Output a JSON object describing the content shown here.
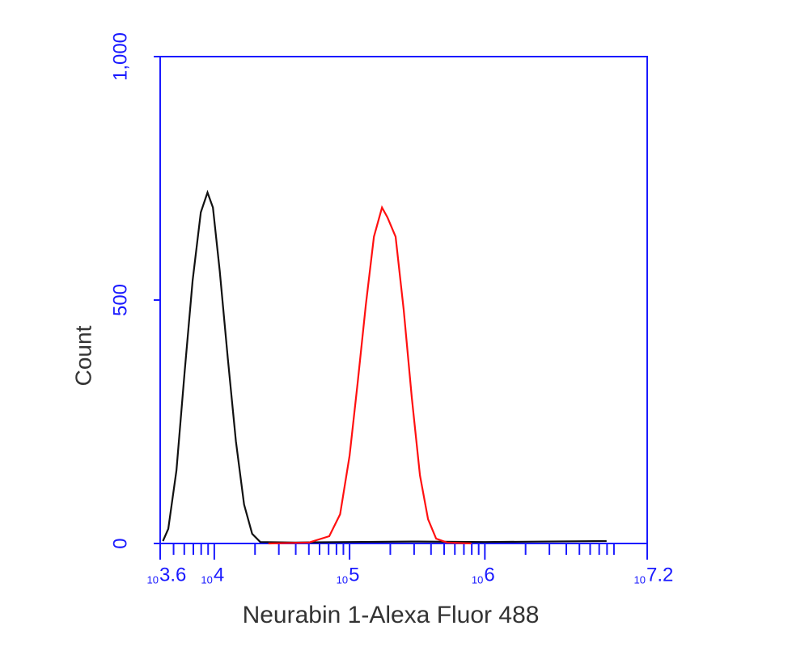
{
  "chart_data": {
    "type": "line",
    "x_label": "Neurabin 1-Alexa Fluor 488",
    "y_label": "Count",
    "x_log_scale": true,
    "log_base_label": "10",
    "xlim": [
      3981,
      15848932
    ],
    "xticks": [
      {
        "value": 3981,
        "label": "3.6"
      },
      {
        "value": 10000,
        "label": "4"
      },
      {
        "value": 100000,
        "label": "5"
      },
      {
        "value": 1000000,
        "label": "6"
      },
      {
        "value": 15848932,
        "label": "7.2"
      }
    ],
    "xticks_minor": [
      5000,
      6000,
      7000,
      8000,
      9000,
      20000,
      30000,
      40000,
      50000,
      60000,
      70000,
      80000,
      90000,
      200000,
      300000,
      400000,
      500000,
      600000,
      700000,
      800000,
      900000,
      2000000,
      3000000,
      4000000,
      5000000,
      6000000,
      7000000,
      8000000,
      9000000
    ],
    "ylim": [
      0,
      1000
    ],
    "yticks": [
      0,
      500,
      {
        "value": 1000,
        "label": "1,000"
      }
    ],
    "axis_color": "#1a1aff",
    "series": [
      {
        "color": "#111111",
        "x": [
          4169,
          4571,
          5248,
          6026,
          6918,
          7943,
          8913,
          9772,
          10965,
          12589,
          14454,
          16596,
          19055,
          21878,
          39811,
          100000,
          316228,
          1000000,
          7943282
        ],
        "values": [
          5,
          30,
          150,
          350,
          540,
          680,
          721,
          690,
          560,
          380,
          210,
          80,
          20,
          3,
          2,
          3,
          4,
          3,
          5
        ]
      },
      {
        "color": "#ff1010",
        "x": [
          25119,
          50119,
          70795,
          85114,
          100000,
          114815,
          131826,
          151356,
          173780,
          190546,
          218776,
          251189,
          288403,
          331131,
          380189,
          436516,
          524807,
          794328
        ],
        "values": [
          0,
          2,
          15,
          60,
          180,
          330,
          490,
          630,
          690,
          670,
          630,
          480,
          300,
          140,
          50,
          10,
          2,
          0
        ]
      }
    ]
  }
}
